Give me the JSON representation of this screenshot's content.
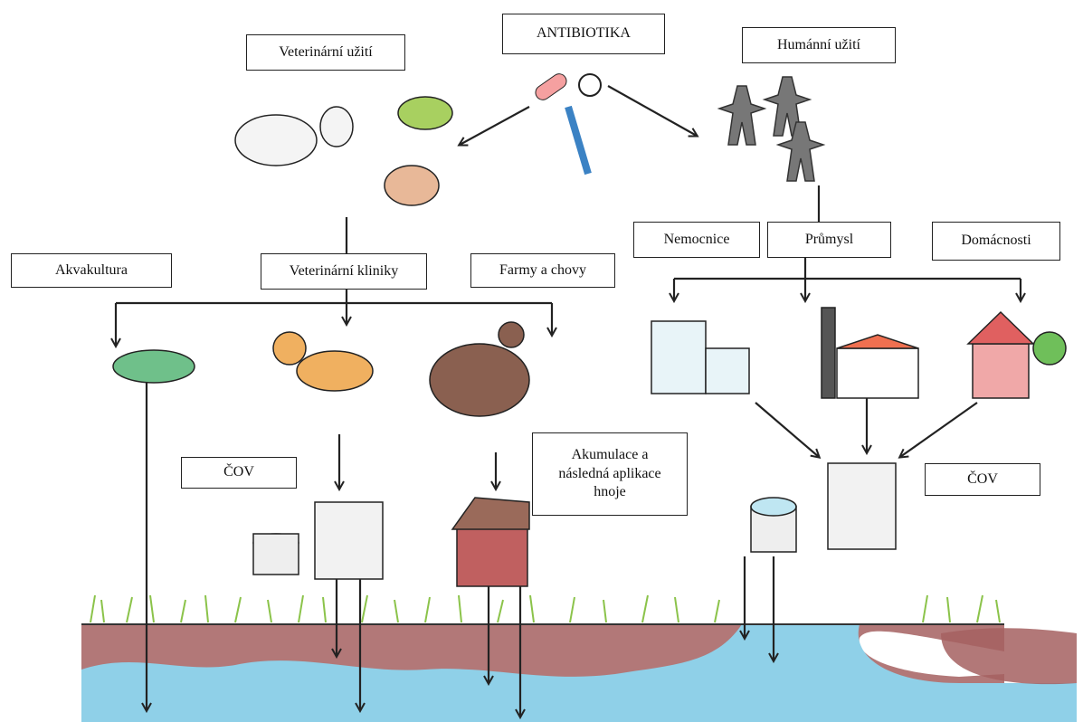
{
  "title": "ANTIBIOTIKA",
  "veterinary": {
    "label": "Veterinární užití",
    "branches": [
      "Akvakultura",
      "Veterinární kliniky",
      "Farmy a chovy"
    ],
    "wwtp": "ČOV",
    "manure": "Akumulace a následná aplikace hnoje"
  },
  "human": {
    "label": "Humánní užití",
    "branches": [
      "Nemocnice",
      "Průmysl",
      "Domácnosti"
    ],
    "wwtp": "ČOV"
  }
}
